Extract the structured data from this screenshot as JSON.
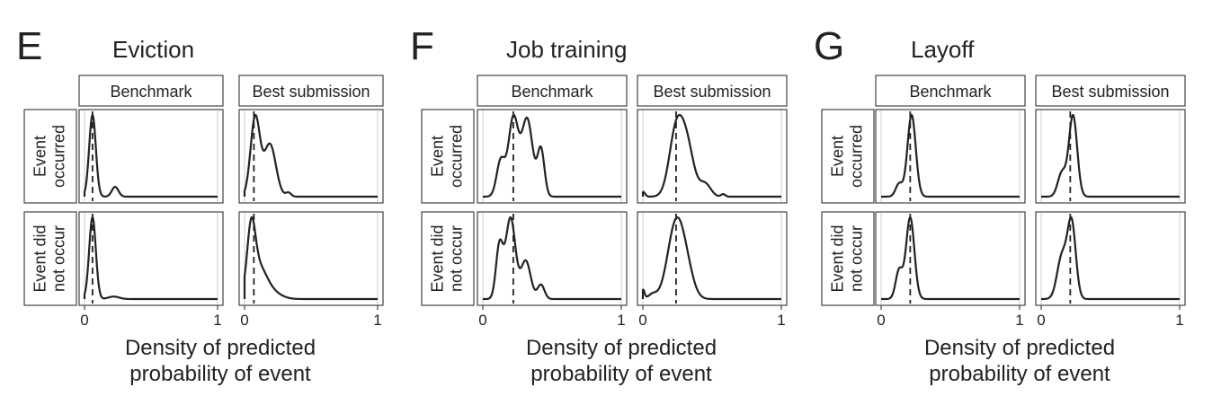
{
  "panel_labels": [
    "E",
    "F",
    "G"
  ],
  "column_strip_labels": [
    "Benchmark",
    "Best submission"
  ],
  "row_strip_labels": [
    [
      "Event",
      "occurred"
    ],
    [
      "Event did",
      "not occur"
    ]
  ],
  "xlabel_lines": [
    "Density of predicted",
    "probability of event"
  ],
  "x_tick_labels": [
    "0",
    "1"
  ],
  "colors": {
    "curve": "#222222",
    "frame": "#444444",
    "grid": "#e6e6e6",
    "strip_fill": "#ffffff"
  },
  "chart_data": [
    {
      "type": "area",
      "title": "Eviction",
      "xlabel": "Density of predicted probability of event",
      "xlim": [
        0,
        1
      ],
      "grid": true,
      "facets": [
        {
          "column": "Benchmark",
          "row": "Event occurred",
          "dashed_x": 0.06,
          "peaks": [
            [
              0.06,
              1.0,
              0.025
            ],
            [
              0.23,
              0.12,
              0.025
            ]
          ]
        },
        {
          "column": "Best submission",
          "row": "Event occurred",
          "dashed_x": 0.07,
          "peaks": [
            [
              0.08,
              0.6,
              0.035
            ],
            [
              0.19,
              0.4,
              0.045
            ],
            [
              0.33,
              0.03,
              0.02
            ]
          ]
        },
        {
          "column": "Benchmark",
          "row": "Event did not occur",
          "dashed_x": 0.06,
          "peaks": [
            [
              0.06,
              1.0,
              0.025
            ],
            [
              0.22,
              0.03,
              0.04
            ]
          ]
        },
        {
          "column": "Best submission",
          "row": "Event did not occur",
          "dashed_x": 0.07,
          "peaks": [
            [
              0.05,
              0.85,
              0.03
            ],
            [
              0.1,
              0.45,
              0.06
            ],
            [
              0.2,
              0.1,
              0.07
            ]
          ]
        }
      ]
    },
    {
      "type": "area",
      "title": "Job training",
      "xlabel": "Density of predicted probability of event",
      "xlim": [
        0,
        1
      ],
      "grid": true,
      "facets": [
        {
          "column": "Benchmark",
          "row": "Event occurred",
          "dashed_x": 0.22,
          "peaks": [
            [
              0.13,
              0.35,
              0.03
            ],
            [
              0.22,
              0.75,
              0.035
            ],
            [
              0.32,
              0.75,
              0.04
            ],
            [
              0.42,
              0.45,
              0.025
            ]
          ]
        },
        {
          "column": "Best submission",
          "row": "Event occurred",
          "dashed_x": 0.24,
          "peaks": [
            [
              0.0,
              0.06,
              0.015
            ],
            [
              0.24,
              0.75,
              0.05
            ],
            [
              0.32,
              0.55,
              0.05
            ],
            [
              0.45,
              0.15,
              0.04
            ],
            [
              0.58,
              0.03,
              0.015
            ]
          ]
        },
        {
          "column": "Benchmark",
          "row": "Event did not occur",
          "dashed_x": 0.22,
          "peaks": [
            [
              0.12,
              0.55,
              0.025
            ],
            [
              0.2,
              0.85,
              0.035
            ],
            [
              0.31,
              0.4,
              0.035
            ],
            [
              0.42,
              0.15,
              0.025
            ]
          ]
        },
        {
          "column": "Best submission",
          "row": "Event did not occur",
          "dashed_x": 0.24,
          "peaks": [
            [
              0.0,
              0.1,
              0.012
            ],
            [
              0.07,
              0.05,
              0.03
            ],
            [
              0.24,
              0.8,
              0.06
            ],
            [
              0.32,
              0.2,
              0.05
            ]
          ]
        }
      ]
    },
    {
      "type": "area",
      "title": "Layoff",
      "xlabel": "Density of predicted probability of event",
      "xlim": [
        0,
        1
      ],
      "grid": true,
      "facets": [
        {
          "column": "Benchmark",
          "row": "Event occurred",
          "dashed_x": 0.21,
          "peaks": [
            [
              0.13,
              0.15,
              0.025
            ],
            [
              0.22,
              0.95,
              0.03
            ]
          ]
        },
        {
          "column": "Best submission",
          "row": "Event occurred",
          "dashed_x": 0.21,
          "peaks": [
            [
              0.15,
              0.25,
              0.03
            ],
            [
              0.23,
              0.85,
              0.03
            ]
          ]
        },
        {
          "column": "Benchmark",
          "row": "Event did not occur",
          "dashed_x": 0.21,
          "peaks": [
            [
              0.13,
              0.35,
              0.025
            ],
            [
              0.21,
              1.0,
              0.03
            ]
          ]
        },
        {
          "column": "Best submission",
          "row": "Event did not occur",
          "dashed_x": 0.21,
          "peaks": [
            [
              0.15,
              0.45,
              0.035
            ],
            [
              0.22,
              0.8,
              0.03
            ]
          ]
        }
      ]
    }
  ]
}
